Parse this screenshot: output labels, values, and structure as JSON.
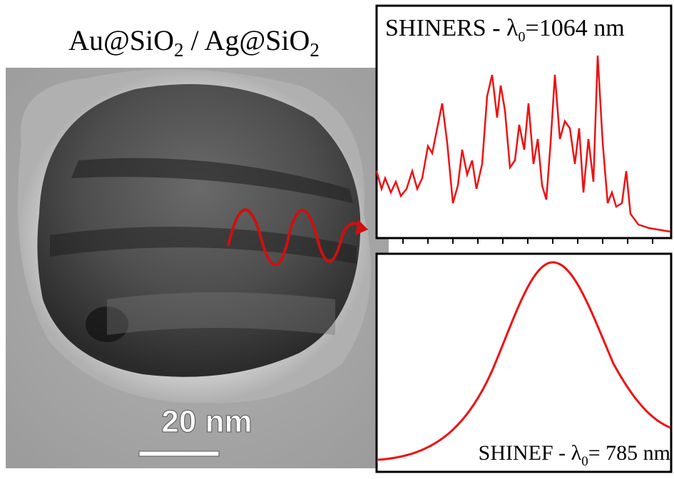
{
  "figure": {
    "title": {
      "parts": [
        "Au@SiO",
        "2",
        " / Ag@SiO",
        "2"
      ]
    },
    "scale_bar": "20 nm",
    "top_panel": {
      "label_parts": [
        "SHINERS - λ",
        "0",
        "=1064 nm"
      ]
    },
    "bottom_panel": {
      "label_parts": [
        "SHINEF - λ",
        "0",
        "= 785 nm"
      ]
    }
  }
}
